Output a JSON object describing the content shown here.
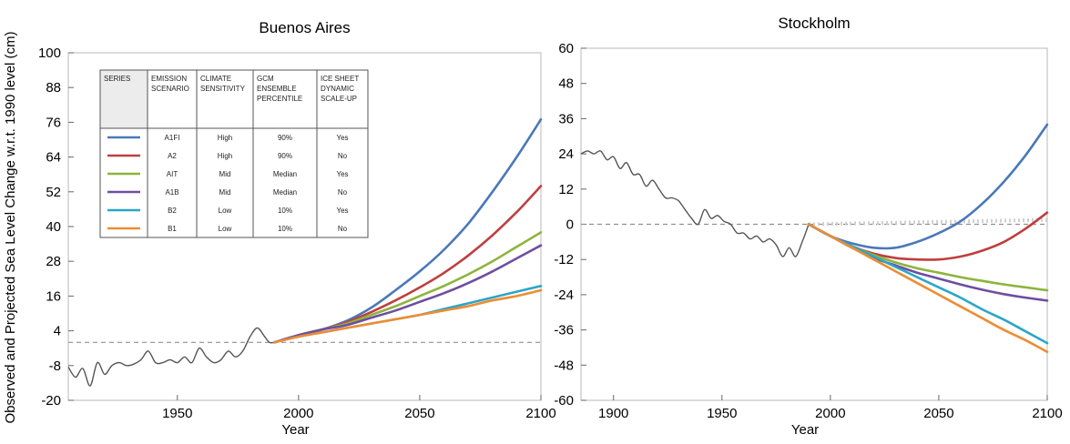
{
  "shared_ylabel": "Observed and Projected Sea Level Change w.r.t. 1990 level (cm)",
  "legend_table": {
    "headers": [
      [
        "SERIES"
      ],
      [
        "EMISSION",
        "SCENARIO"
      ],
      [
        "CLIMATE",
        "SENSITIVITY"
      ],
      [
        "GCM",
        "ENSEMBLE",
        "PERCENTILE"
      ],
      [
        "ICE SHEET",
        "DYNAMIC",
        "SCALE-UP"
      ]
    ],
    "rows": [
      {
        "color": "#4a78b8",
        "scenario": "A1FI",
        "sensitivity": "High",
        "percentile": "90%",
        "scaleup": "Yes"
      },
      {
        "color": "#bf3f3f",
        "scenario": "A2",
        "sensitivity": "High",
        "percentile": "90%",
        "scaleup": "No"
      },
      {
        "color": "#8db43c",
        "scenario": "AIT",
        "sensitivity": "Mid",
        "percentile": "Median",
        "scaleup": "Yes"
      },
      {
        "color": "#6e4ea0",
        "scenario": "A1B",
        "sensitivity": "Mid",
        "percentile": "Median",
        "scaleup": "No"
      },
      {
        "color": "#2aa6c8",
        "scenario": "B2",
        "sensitivity": "Low",
        "percentile": "10%",
        "scaleup": "Yes"
      },
      {
        "color": "#ee8c32",
        "scenario": "B1",
        "sensitivity": "Low",
        "percentile": "10%",
        "scaleup": "No"
      }
    ]
  },
  "chart_data": [
    {
      "type": "line",
      "title": "Buenos Aires",
      "xlabel": "Year",
      "ylabel": "Observed and Projected Sea Level Change w.r.t. 1990 level (cm)",
      "xlim": [
        1905,
        2100
      ],
      "ylim": [
        -20,
        100
      ],
      "xticks": [
        1950,
        2000,
        2050,
        2100
      ],
      "yticks": [
        -20,
        -8,
        4,
        16,
        28,
        40,
        52,
        64,
        76,
        88,
        100
      ],
      "baseline": 0,
      "legend_position": "top-left",
      "observed": {
        "x": [
          1905,
          1908,
          1911,
          1914,
          1917,
          1920,
          1923,
          1926,
          1929,
          1932,
          1935,
          1938,
          1941,
          1944,
          1947,
          1950,
          1953,
          1956,
          1959,
          1962,
          1965,
          1968,
          1971,
          1974,
          1977,
          1980,
          1983,
          1986,
          1988,
          1990
        ],
        "y": [
          -8.5,
          -12,
          -9,
          -15,
          -7,
          -11,
          -8,
          -7,
          -8,
          -7.5,
          -6,
          -3,
          -7,
          -7,
          -6,
          -7,
          -5,
          -7,
          -2,
          -5,
          -7,
          -6,
          -3,
          -5,
          -3,
          2,
          5,
          2,
          0,
          0
        ]
      },
      "series": [
        {
          "name": "A1FI",
          "color": "#4a78b8",
          "x": [
            1990,
            2000,
            2010,
            2020,
            2030,
            2040,
            2050,
            2060,
            2070,
            2080,
            2090,
            2100
          ],
          "y": [
            0,
            2.5,
            4.5,
            7.5,
            12,
            18,
            24.5,
            32,
            41,
            52,
            64,
            77
          ]
        },
        {
          "name": "A2",
          "color": "#bf3f3f",
          "x": [
            1990,
            2000,
            2010,
            2020,
            2030,
            2040,
            2050,
            2060,
            2070,
            2080,
            2090,
            2100
          ],
          "y": [
            0,
            2.5,
            4.5,
            7,
            10.5,
            14.5,
            19,
            24,
            30,
            37,
            45,
            54
          ]
        },
        {
          "name": "AIT",
          "color": "#8db43c",
          "x": [
            1990,
            2000,
            2010,
            2020,
            2030,
            2040,
            2050,
            2060,
            2070,
            2080,
            2090,
            2100
          ],
          "y": [
            0,
            2.5,
            4.5,
            6.5,
            9.5,
            12.5,
            16,
            19.5,
            23.5,
            28,
            33,
            38
          ]
        },
        {
          "name": "A1B",
          "color": "#6e4ea0",
          "x": [
            1990,
            2000,
            2010,
            2020,
            2030,
            2040,
            2050,
            2060,
            2070,
            2080,
            2090,
            2100
          ],
          "y": [
            0,
            2.5,
            4.5,
            6,
            8.5,
            11,
            14,
            17,
            20.5,
            24.5,
            29,
            33.5
          ]
        },
        {
          "name": "B2",
          "color": "#2aa6c8",
          "x": [
            1990,
            2000,
            2010,
            2020,
            2030,
            2040,
            2050,
            2060,
            2070,
            2080,
            2090,
            2100
          ],
          "y": [
            0,
            2,
            3.5,
            5,
            6.5,
            8,
            9.5,
            11.5,
            13.5,
            15.5,
            17.5,
            19.5
          ]
        },
        {
          "name": "B1",
          "color": "#ee8c32",
          "x": [
            1990,
            2000,
            2010,
            2020,
            2030,
            2040,
            2050,
            2060,
            2070,
            2080,
            2090,
            2100
          ],
          "y": [
            0,
            2,
            3.5,
            5,
            6.5,
            8,
            9.5,
            11,
            12.5,
            14.5,
            16,
            18
          ]
        }
      ]
    },
    {
      "type": "line",
      "title": "Stockholm",
      "xlabel": "Year",
      "ylabel": "",
      "xlim": [
        1885,
        2100
      ],
      "ylim": [
        -60,
        60
      ],
      "xticks": [
        1900,
        1950,
        2000,
        2050,
        2100
      ],
      "yticks": [
        -60,
        -48,
        -36,
        -24,
        -12,
        0,
        12,
        24,
        36,
        48,
        60
      ],
      "baseline": 0,
      "reference": {
        "color": "#d0d0d0",
        "x": [
          1990,
          2100
        ],
        "y": [
          0,
          1.5
        ]
      },
      "observed": {
        "x": [
          1885,
          1888,
          1891,
          1894,
          1897,
          1900,
          1903,
          1906,
          1909,
          1912,
          1915,
          1918,
          1921,
          1924,
          1927,
          1930,
          1933,
          1936,
          1939,
          1942,
          1945,
          1948,
          1951,
          1954,
          1957,
          1960,
          1963,
          1966,
          1969,
          1972,
          1975,
          1978,
          1981,
          1984,
          1987,
          1990
        ],
        "y": [
          24,
          25,
          24,
          25,
          22,
          23,
          19,
          21,
          17,
          17,
          13,
          15,
          12,
          9,
          9,
          8,
          5,
          2,
          0,
          5,
          2,
          3,
          1,
          0,
          -3,
          -3,
          -5,
          -4,
          -6,
          -5,
          -7,
          -11,
          -8,
          -11,
          -6,
          0
        ]
      },
      "series": [
        {
          "name": "A1FI",
          "color": "#4a78b8",
          "x": [
            1990,
            2000,
            2010,
            2020,
            2030,
            2040,
            2050,
            2060,
            2070,
            2080,
            2090,
            2100
          ],
          "y": [
            0,
            -4,
            -6.5,
            -8,
            -8,
            -6,
            -3,
            1,
            7,
            14.5,
            23.5,
            34
          ]
        },
        {
          "name": "A2",
          "color": "#bf3f3f",
          "x": [
            1990,
            2000,
            2010,
            2020,
            2030,
            2040,
            2050,
            2060,
            2070,
            2080,
            2090,
            2100
          ],
          "y": [
            0,
            -4,
            -7.5,
            -10,
            -11.5,
            -12,
            -12,
            -11,
            -9,
            -6,
            -1.5,
            4
          ]
        },
        {
          "name": "AIT",
          "color": "#8db43c",
          "x": [
            1990,
            2000,
            2010,
            2020,
            2030,
            2040,
            2050,
            2060,
            2070,
            2080,
            2090,
            2100
          ],
          "y": [
            0,
            -4,
            -7.5,
            -10.5,
            -13,
            -15,
            -16.5,
            -18,
            -19.3,
            -20.5,
            -21.5,
            -22.5
          ]
        },
        {
          "name": "A1B",
          "color": "#6e4ea0",
          "x": [
            1990,
            2000,
            2010,
            2020,
            2030,
            2040,
            2050,
            2060,
            2070,
            2080,
            2090,
            2100
          ],
          "y": [
            0,
            -4,
            -8,
            -11.5,
            -14,
            -16.5,
            -18.5,
            -20.5,
            -22.3,
            -23.8,
            -25,
            -26
          ]
        },
        {
          "name": "B2",
          "color": "#2aa6c8",
          "x": [
            1990,
            2000,
            2010,
            2020,
            2030,
            2040,
            2050,
            2060,
            2070,
            2080,
            2090,
            2100
          ],
          "y": [
            0,
            -4,
            -7.5,
            -11,
            -14.5,
            -18,
            -21.5,
            -25,
            -29,
            -32.5,
            -36.5,
            -40.5
          ]
        },
        {
          "name": "B1",
          "color": "#ee8c32",
          "x": [
            1990,
            2000,
            2010,
            2020,
            2030,
            2040,
            2050,
            2060,
            2070,
            2080,
            2090,
            2100
          ],
          "y": [
            0,
            -4,
            -8,
            -12,
            -16,
            -20,
            -24,
            -28,
            -32,
            -36,
            -39.5,
            -43.5
          ]
        }
      ]
    }
  ]
}
